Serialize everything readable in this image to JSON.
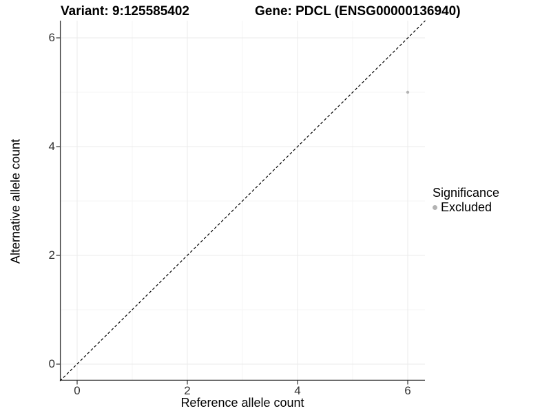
{
  "chart_data": {
    "type": "scatter",
    "title_left": "Variant: 9:125585402",
    "title_right": "Gene: PDCL (ENSG00000136940)",
    "xlabel": "Reference allele count",
    "ylabel": "Alternative allele count",
    "xticks": [
      0,
      2,
      4,
      6
    ],
    "yticks": [
      0,
      2,
      4,
      6
    ],
    "minor_ticks": [
      1,
      3,
      5
    ],
    "xlim": [
      -0.3,
      6.3
    ],
    "ylim": [
      -0.3,
      6.3
    ],
    "grid": "major and minor, light gray, on white background",
    "identity_line": {
      "equation": "y = x",
      "style": "dashed",
      "color": "#000000"
    },
    "points": [
      {
        "x": 6,
        "y": 5,
        "series": "Excluded"
      }
    ],
    "legend": {
      "title": "Significance",
      "position": "right",
      "items": [
        {
          "label": "Excluded",
          "color": "#b3b3b3"
        }
      ]
    },
    "colors": {
      "point": "#b3b3b3",
      "axis_line": "#333333",
      "tick_label": "#333333",
      "major_grid": "#ebebeb",
      "minor_grid": "#f5f5f5",
      "background": "#ffffff"
    }
  }
}
